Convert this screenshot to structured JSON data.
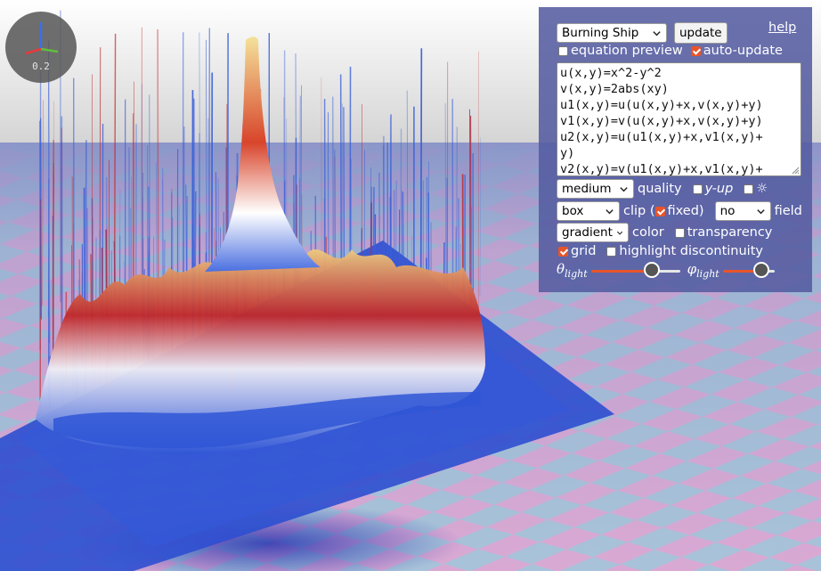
{
  "scene": {
    "sky_top": "#ffffff",
    "horizon": "#d6d6d6",
    "floor_pink": "#d9a9d3",
    "floor_blue": "#a8c3d9",
    "surface_blue": "#2f56d6",
    "surface_red": "#c0282a",
    "surface_yellow": "#f1d77a"
  },
  "gizmo": {
    "scale_label": "0.2"
  },
  "panel": {
    "preset": "Burning Ship",
    "update_label": "update",
    "help_label": "help",
    "equation_preview_label": "equation preview",
    "equation_preview_checked": false,
    "auto_update_label": "auto-update",
    "auto_update_checked": true,
    "equations": [
      "u(x,y)=x^2-y^2",
      "v(x,y)=2abs(xy)",
      "u1(x,y)=u(u(x,y)+x,v(x,y)+y)",
      "v1(x,y)=v(u(x,y)+x,v(x,y)+y)",
      "u2(x,y)=u(u1(x,y)+x,v1(x,y)+",
      "y)",
      "v2(x,y)=v(u1(x,y)+x,v1(x,y)+"
    ],
    "quality_select": "medium",
    "quality_label": "quality",
    "y_up_label": "y-up",
    "y_up_checked": false,
    "sun_label": "☼",
    "sun_checked": false,
    "clip_select": "box",
    "clip_label": "clip (",
    "fixed_label": "fixed)",
    "fixed_checked": true,
    "field_select": "no",
    "field_label": "field",
    "color_select": "gradient",
    "color_label": "color",
    "transparency_label": "transparency",
    "transparency_checked": false,
    "grid_label": "grid",
    "grid_checked": true,
    "highlight_label": "highlight discontinuity",
    "highlight_checked": false,
    "theta_symbol": "θ",
    "theta_sub": "light",
    "theta_value": 0.72,
    "phi_symbol": "φ",
    "phi_sub": "light",
    "phi_value": 0.85
  }
}
